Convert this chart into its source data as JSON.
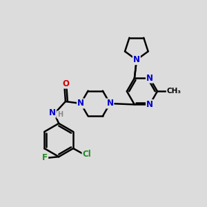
{
  "background_color": "#dcdcdc",
  "bond_color": "#000000",
  "bond_width": 1.8,
  "atom_colors": {
    "N": "#0000cc",
    "O": "#cc0000",
    "F": "#228B22",
    "Cl": "#228B22",
    "C": "#000000",
    "H": "#888888"
  },
  "font_size": 8.5,
  "fig_size": [
    3.0,
    3.0
  ],
  "dpi": 100
}
